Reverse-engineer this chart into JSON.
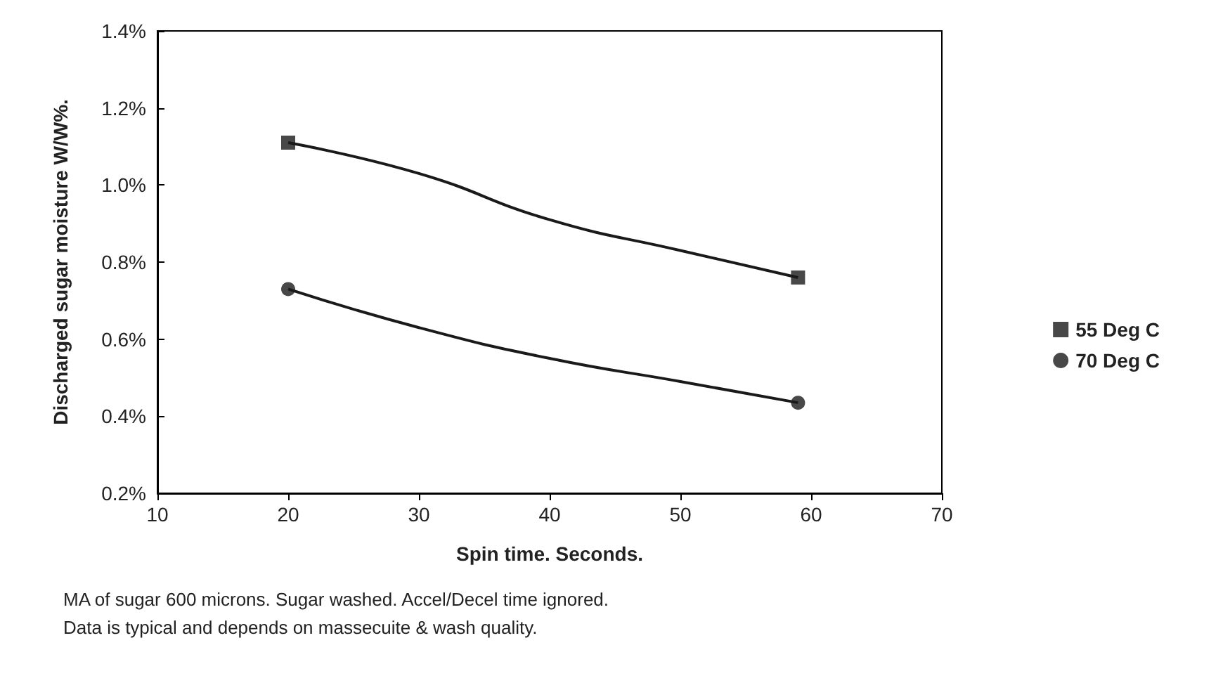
{
  "chart_data": {
    "type": "line",
    "xlabel": "Spin time. Seconds.",
    "ylabel": "Discharged sugar moisture W/W%.",
    "xlim": [
      10,
      70
    ],
    "xticks": [
      10,
      20,
      30,
      40,
      50,
      60,
      70
    ],
    "ylim": [
      0.2,
      1.4
    ],
    "yticks": [
      {
        "value": 0.2,
        "label": "0.2%"
      },
      {
        "value": 0.4,
        "label": "0.4%"
      },
      {
        "value": 0.6,
        "label": "0.6%"
      },
      {
        "value": 0.8,
        "label": "0.8%"
      },
      {
        "value": 1.0,
        "label": "1.0%"
      },
      {
        "value": 1.2,
        "label": "1.2%"
      },
      {
        "value": 1.4,
        "label": "1.4%"
      }
    ],
    "grid": false,
    "legend": "right",
    "series": [
      {
        "name": "55 Deg C",
        "type": "scatter",
        "marker": "square",
        "color": "#1a1a1a",
        "x": [
          20,
          59
        ],
        "values": [
          1.11,
          0.76
        ]
      },
      {
        "name": "70 Deg C",
        "type": "scatter",
        "marker": "circle",
        "color": "#1a1a1a",
        "x": [
          20,
          59
        ],
        "values": [
          0.73,
          0.435
        ]
      },
      {
        "marker": "none",
        "color": "#1a1a1a",
        "x": [
          20,
          30,
          40,
          50,
          59
        ],
        "values": [
          1.11,
          1.03,
          0.91,
          0.83,
          0.76
        ]
      },
      {
        "marker": "none",
        "color": "#1a1a1a",
        "x": [
          20,
          30,
          40,
          50,
          59
        ],
        "values": [
          0.73,
          0.63,
          0.55,
          0.49,
          0.435
        ]
      }
    ],
    "annotations": [
      "MA of sugar 600 microns. Sugar washed. Accel/Decel time ignored.",
      "Data is typical and depends on massecuite & wash quality."
    ]
  }
}
